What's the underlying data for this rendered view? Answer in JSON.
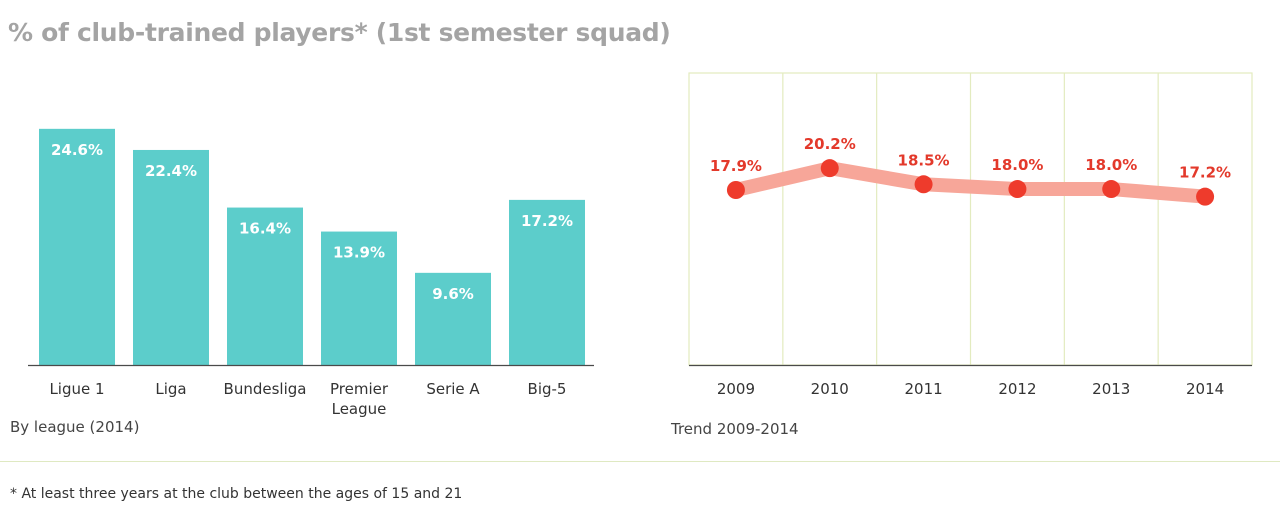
{
  "title": "% of club-trained players* (1st semester squad)",
  "footnote": "* At least three years at the club between the ages of 15 and 21",
  "colors": {
    "bar": "#5ccdcb",
    "line": "#f7a699",
    "marker": "#ee3b2c",
    "label": "#e3392b",
    "grid": "#e3ebbf",
    "title": "#a4a4a4"
  },
  "chart_data": [
    {
      "type": "bar",
      "title": "",
      "caption": "By league (2014)",
      "categories": [
        [
          "Ligue 1"
        ],
        [
          "Liga"
        ],
        [
          "Bundesliga"
        ],
        [
          "Premier",
          "League"
        ],
        [
          "Serie A"
        ],
        [
          "Big-5"
        ]
      ],
      "values": [
        24.6,
        22.4,
        16.4,
        13.9,
        9.6,
        17.2
      ],
      "data_labels": [
        "24.6%",
        "22.4%",
        "16.4%",
        "13.9%",
        "9.6%",
        "17.2%"
      ],
      "ylim": [
        0,
        25
      ],
      "xlabel": "",
      "ylabel": ""
    },
    {
      "type": "line",
      "title": "",
      "caption": "Trend 2009-2014",
      "x": [
        "2009",
        "2010",
        "2011",
        "2012",
        "2013",
        "2014"
      ],
      "values": [
        17.9,
        20.2,
        18.5,
        18.0,
        18.0,
        17.2
      ],
      "data_labels": [
        "17.9%",
        "20.2%",
        "18.5%",
        "18.0%",
        "18.0%",
        "17.2%"
      ],
      "ylim": [
        0,
        25
      ],
      "grid": true,
      "xlabel": "",
      "ylabel": ""
    }
  ]
}
